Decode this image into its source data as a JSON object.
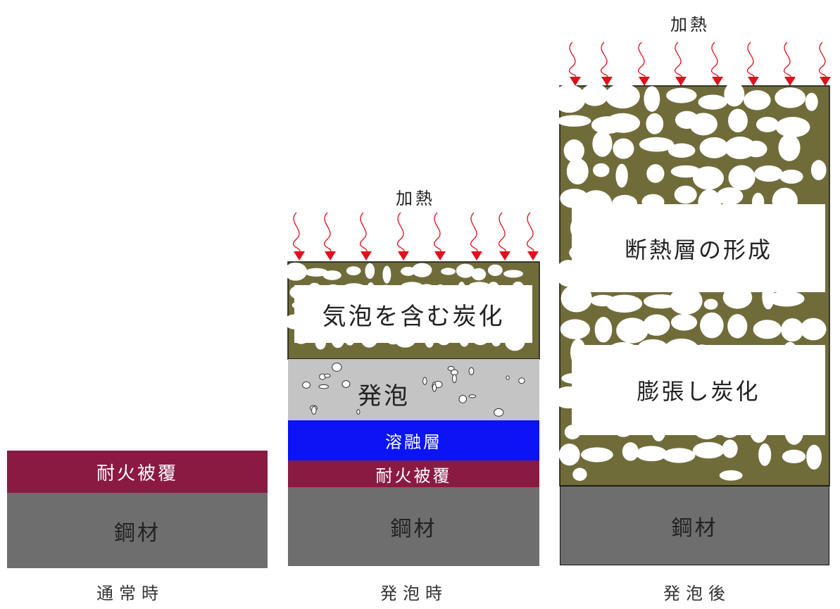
{
  "colors": {
    "steel": "#6e6e6e",
    "fireproof": "#8b1a42",
    "melt": "#0a14f5",
    "foam": "#c4c4c4",
    "char": "#706c3a",
    "arrow": "#e0101c"
  },
  "states": {
    "normal": {
      "caption": "通常時",
      "steel": "鋼材",
      "coating": "耐火被覆"
    },
    "foaming": {
      "caption": "発泡時",
      "heat": "加熱",
      "char_label": "気泡を含む炭化",
      "foam_label": "発泡",
      "melt_label": "溶融層",
      "coating": "耐火被覆",
      "steel": "鋼材"
    },
    "after": {
      "caption": "発泡後",
      "heat": "加熱",
      "insulation_label": "断熱層の形成",
      "expanded_label": "膨張し炭化",
      "steel": "鋼材"
    }
  }
}
